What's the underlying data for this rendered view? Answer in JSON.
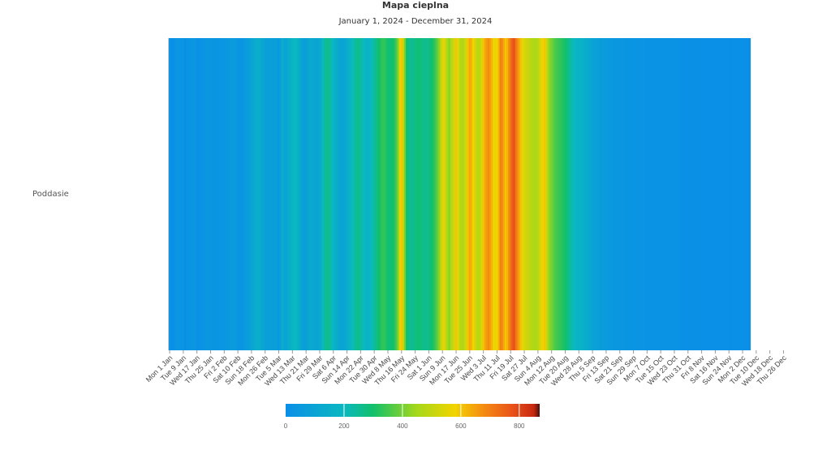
{
  "chart_data": {
    "type": "heatmap",
    "title": "Mapa cieplna",
    "subtitle": "January 1, 2024 - December 31, 2024",
    "rows": [
      "Poddasie"
    ],
    "x_tick_labels": [
      "Mon 1 Jan",
      "Tue 9 Jan",
      "Wed 17 Jan",
      "Thu 25 Jan",
      "Fri 2 Feb",
      "Sat 10 Feb",
      "Sun 18 Feb",
      "Mon 26 Feb",
      "Tue 5 Mar",
      "Wed 13 Mar",
      "Thu 21 Mar",
      "Fri 29 Mar",
      "Sat 6 Apr",
      "Sun 14 Apr",
      "Mon 22 Apr",
      "Tue 30 Apr",
      "Wed 8 May",
      "Thu 16 May",
      "Fri 24 May",
      "Sat 1 Jun",
      "Sun 9 Jun",
      "Mon 17 Jun",
      "Tue 25 Jun",
      "Wed 3 Jul",
      "Thu 11 Jul",
      "Fri 19 Jul",
      "Sat 27 Jul",
      "Sun 4 Aug",
      "Mon 12 Aug",
      "Tue 20 Aug",
      "Wed 28 Aug",
      "Thu 5 Sep",
      "Fri 13 Sep",
      "Sat 21 Sep",
      "Sun 29 Sep",
      "Mon 7 Oct",
      "Tue 15 Oct",
      "Wed 23 Oct",
      "Thu 31 Oct",
      "Fri 8 Nov",
      "Sat 16 Nov",
      "Sun 24 Nov",
      "Mon 2 Dec",
      "Tue 10 Dec",
      "Wed 18 Dec",
      "Thu 26 Dec"
    ],
    "x_start": "2024-01-01",
    "x_end": "2024-12-31",
    "color_scale": {
      "min": 0,
      "max": 870,
      "ticks": [
        0,
        200,
        400,
        600,
        800
      ],
      "stops": [
        {
          "value": 0,
          "color": "#0a8fe8"
        },
        {
          "value": 200,
          "color": "#0ab8c0"
        },
        {
          "value": 300,
          "color": "#12c06a"
        },
        {
          "value": 450,
          "color": "#a6d81a"
        },
        {
          "value": 580,
          "color": "#f2d400"
        },
        {
          "value": 680,
          "color": "#f58a12"
        },
        {
          "value": 780,
          "color": "#e8501a"
        },
        {
          "value": 850,
          "color": "#c62810"
        },
        {
          "value": 870,
          "color": "#4a1010"
        }
      ]
    },
    "values": [
      {
        "start": "2024-01-01",
        "values": [
          30,
          0,
          0,
          15,
          30,
          40,
          35,
          25,
          30,
          0,
          20,
          25,
          30,
          35,
          35,
          35,
          0,
          10,
          20,
          20,
          30,
          30,
          35,
          40,
          35,
          40,
          30,
          30,
          30,
          30,
          35,
          35,
          40,
          45,
          40,
          50,
          60,
          70,
          60,
          50,
          40,
          30,
          30,
          40,
          50,
          60,
          70,
          80,
          100,
          120,
          130,
          150,
          150,
          140,
          120,
          100,
          90,
          80,
          80,
          80,
          80,
          70,
          90,
          60,
          50,
          80,
          150,
          120,
          100,
          120,
          140,
          160,
          180,
          200,
          200,
          170,
          140,
          110,
          90,
          80,
          90,
          100,
          120,
          130,
          120,
          110,
          100,
          110,
          130,
          160,
          200,
          240,
          260,
          260,
          240,
          210,
          190,
          160,
          140,
          120,
          110,
          100,
          100,
          120,
          140,
          160,
          180,
          200,
          220,
          240,
          260,
          260,
          240,
          220,
          200,
          180,
          170,
          180,
          200,
          220,
          240,
          260,
          280,
          300,
          320,
          330,
          330,
          310,
          290,
          280,
          290,
          300,
          320,
          360,
          420,
          560,
          600,
          500,
          400,
          300,
          270,
          260,
          250,
          260,
          270,
          280,
          290,
          280,
          270,
          260,
          255,
          260,
          270,
          280,
          300,
          320,
          350,
          380,
          420,
          480,
          540,
          560,
          500,
          450,
          420,
          460,
          500,
          530,
          600,
          560,
          500,
          460,
          470,
          500,
          540,
          600,
          640,
          620,
          580,
          540,
          500,
          480,
          500,
          540,
          600,
          640,
          660,
          680,
          650,
          620,
          580,
          560,
          580,
          620,
          700,
          680,
          640,
          600,
          620,
          680,
          720,
          760,
          780,
          720,
          680,
          640,
          600,
          560,
          540,
          520,
          510,
          500,
          480,
          470,
          460,
          460,
          480,
          520,
          560,
          580,
          600,
          520,
          450,
          420,
          400,
          380,
          360,
          350,
          340,
          330,
          320,
          310,
          300,
          280,
          260,
          240,
          220,
          200,
          190,
          180,
          175,
          170,
          160,
          150,
          140,
          130,
          120,
          110,
          100,
          90,
          85,
          80,
          75,
          70,
          65,
          60,
          60,
          55,
          50,
          45,
          45,
          40,
          40,
          40,
          35,
          35,
          35,
          35,
          30,
          30,
          30,
          30,
          25,
          25,
          25,
          25,
          25,
          25,
          25,
          20,
          20,
          20,
          20,
          20,
          20,
          20,
          20,
          20,
          20,
          20,
          20,
          15,
          15,
          15,
          15,
          15,
          15,
          15,
          15,
          15,
          10,
          10,
          10,
          10,
          10,
          10,
          10,
          10,
          10,
          10,
          10,
          10,
          10,
          10,
          5,
          5,
          5,
          5,
          5,
          5,
          5,
          5,
          5,
          5,
          5,
          5,
          5,
          5,
          5,
          0,
          5,
          5,
          5,
          5,
          5,
          5,
          5,
          5,
          5,
          5,
          5
        ]
      }
    ]
  }
}
